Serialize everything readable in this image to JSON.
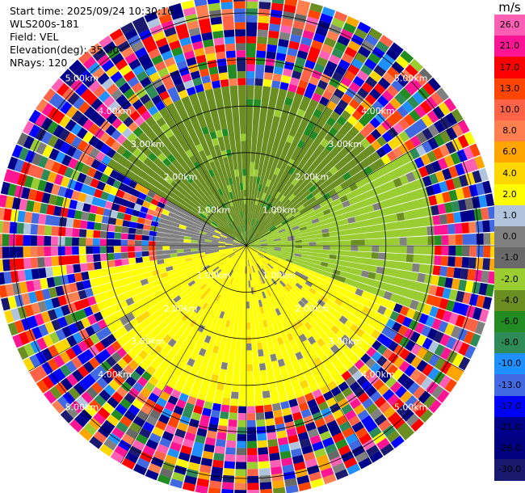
{
  "header": {
    "start_time": "Start time: 2025/09/24 10:30:16",
    "instrument": "WLS200s-181",
    "field": "Field: VEL",
    "elevation": "Elevation(deg): 35.00",
    "nrays": "NRays: 120"
  },
  "colorbar": {
    "unit": "m/s",
    "levels": [
      {
        "label": "26.0",
        "color": "#ff5fb4"
      },
      {
        "label": "21.0",
        "color": "#ff1493"
      },
      {
        "label": "17.0",
        "color": "#ff0000"
      },
      {
        "label": "13.0",
        "color": "#ff4500"
      },
      {
        "label": "10.0",
        "color": "#ff6347"
      },
      {
        "label": "8.0",
        "color": "#ff7f50"
      },
      {
        "label": "6.0",
        "color": "#ffa500"
      },
      {
        "label": "4.0",
        "color": "#ffd700"
      },
      {
        "label": "2.0",
        "color": "#ffff00"
      },
      {
        "label": "1.0",
        "color": "#b0c4de"
      },
      {
        "label": "0.0",
        "color": "#808080"
      },
      {
        "label": "-1.0",
        "color": "#696969"
      },
      {
        "label": "-2.0",
        "color": "#9acd32"
      },
      {
        "label": "-4.0",
        "color": "#6b8e23"
      },
      {
        "label": "-6.0",
        "color": "#228b22"
      },
      {
        "label": "-8.0",
        "color": "#2e8b57"
      },
      {
        "label": "-10.0",
        "color": "#1e90ff"
      },
      {
        "label": "-13.0",
        "color": "#4169e1"
      },
      {
        "label": "-17.0",
        "color": "#0000ff"
      },
      {
        "label": "-21.0",
        "color": "#00008b"
      },
      {
        "label": "-26.0",
        "color": "#000080"
      },
      {
        "label": "-30.0",
        "color": "#191970"
      }
    ]
  },
  "chart_data": {
    "type": "heatmap",
    "subtype": "radar-ppi-doppler-velocity",
    "field": "VEL",
    "units": "m/s",
    "elevation_deg": 35.0,
    "nrays": 120,
    "range_rings_km": [
      1,
      2,
      3,
      4,
      5
    ],
    "ring_labels": [
      "1.00km",
      "2.00km",
      "3.00km",
      "4.00km",
      "5.00km"
    ],
    "max_range_km": 5.4,
    "azimuth_spokes_deg": [
      0,
      30,
      60,
      90,
      120,
      150,
      180,
      210,
      240,
      270,
      300,
      330
    ],
    "pattern_description_sectors": [
      {
        "azimuth_from": 300,
        "azimuth_to": 60,
        "range_to_km": 3.5,
        "velocity": -4.0
      },
      {
        "azimuth_from": 60,
        "azimuth_to": 110,
        "range_to_km": 4.2,
        "velocity": -2.0
      },
      {
        "azimuth_from": 110,
        "azimuth_to": 260,
        "range_to_km": 3.6,
        "velocity": 2.0
      },
      {
        "azimuth_from": 260,
        "azimuth_to": 300,
        "range_to_km": 2.0,
        "velocity": 0.0
      }
    ]
  }
}
